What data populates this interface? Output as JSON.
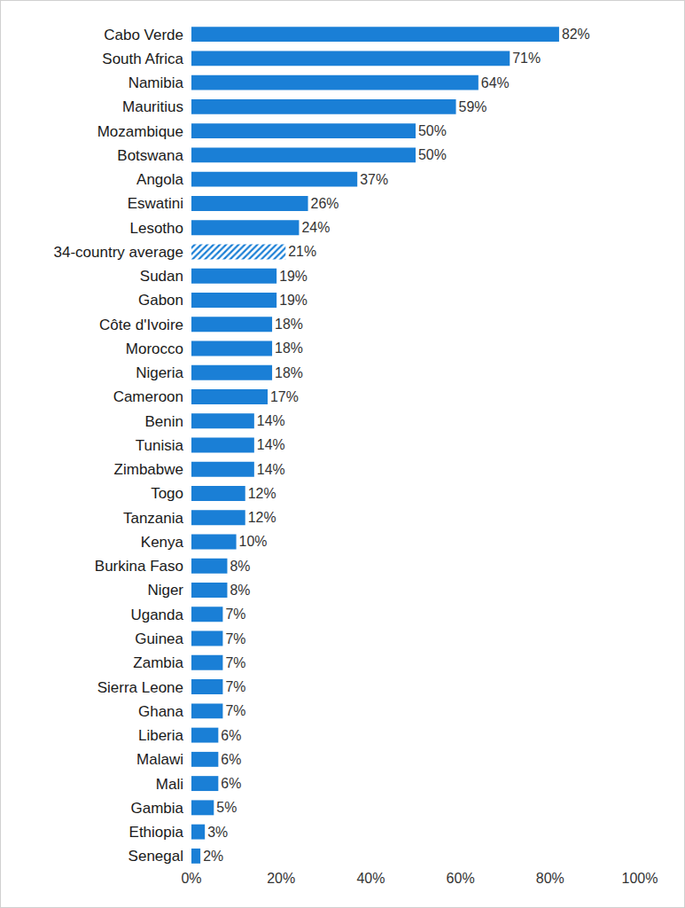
{
  "chart_data": {
    "type": "bar",
    "orientation": "horizontal",
    "data_labels": true,
    "grid": false,
    "categories": [
      "Cabo Verde",
      "South Africa",
      "Namibia",
      "Mauritius",
      "Mozambique",
      "Botswana",
      "Angola",
      "Eswatini",
      "Lesotho",
      "34-country average",
      "Sudan",
      "Gabon",
      "Côte d'Ivoire",
      "Morocco",
      "Nigeria",
      "Cameroon",
      "Benin",
      "Tunisia",
      "Zimbabwe",
      "Togo",
      "Tanzania",
      "Kenya",
      "Burkina Faso",
      "Niger",
      "Uganda",
      "Guinea",
      "Zambia",
      "Sierra Leone",
      "Ghana",
      "Liberia",
      "Malawi",
      "Mali",
      "Gambia",
      "Ethiopia",
      "Senegal"
    ],
    "series": [
      {
        "color": "#1a7fd6",
        "marker": "solid",
        "values": [
          82,
          71,
          64,
          59,
          50,
          50,
          37,
          26,
          24,
          null,
          19,
          19,
          18,
          18,
          18,
          17,
          14,
          14,
          14,
          12,
          12,
          10,
          8,
          8,
          7,
          7,
          7,
          7,
          7,
          6,
          6,
          6,
          5,
          3,
          2
        ],
        "value_labels": [
          "82%",
          "71%",
          "64%",
          "59%",
          "50%",
          "50%",
          "37%",
          "26%",
          "24%",
          null,
          "19%",
          "19%",
          "18%",
          "18%",
          "18%",
          "17%",
          "14%",
          "14%",
          "14%",
          "12%",
          "12%",
          "10%",
          "8%",
          "8%",
          "7%",
          "7%",
          "7%",
          "7%",
          "7%",
          "6%",
          "6%",
          "6%",
          "5%",
          "3%",
          "2%"
        ]
      },
      {
        "color": "#1a7fd6",
        "marker": "hatched",
        "values": [
          null,
          null,
          null,
          null,
          null,
          null,
          null,
          null,
          null,
          21,
          null,
          null,
          null,
          null,
          null,
          null,
          null,
          null,
          null,
          null,
          null,
          null,
          null,
          null,
          null,
          null,
          null,
          null,
          null,
          null,
          null,
          null,
          null,
          null,
          null
        ],
        "value_labels": [
          null,
          null,
          null,
          null,
          null,
          null,
          null,
          null,
          null,
          "21%",
          null,
          null,
          null,
          null,
          null,
          null,
          null,
          null,
          null,
          null,
          null,
          null,
          null,
          null,
          null,
          null,
          null,
          null,
          null,
          null,
          null,
          null,
          null,
          null,
          null
        ]
      }
    ],
    "xlim": [
      0,
      100
    ],
    "xticks": [
      {
        "value": 0,
        "label": "0%"
      },
      {
        "value": 20,
        "label": "20%"
      },
      {
        "value": 40,
        "label": "40%"
      },
      {
        "value": 60,
        "label": "60%"
      },
      {
        "value": 80,
        "label": "80%"
      },
      {
        "value": 100,
        "label": "100%"
      }
    ]
  }
}
